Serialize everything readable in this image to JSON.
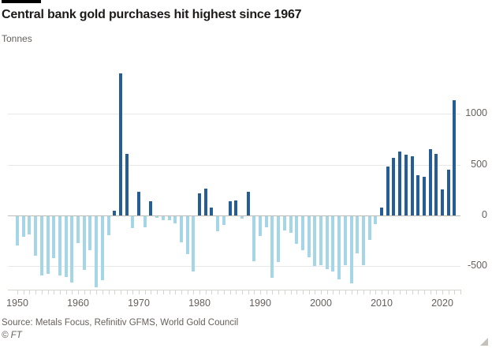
{
  "header": {
    "title": "Central bank gold purchases hit highest since 1967",
    "subtitle": "Tonnes"
  },
  "footer": {
    "source": "Source: Metals Focus, Refinitiv GFMS, World Gold Council",
    "copyright": "© FT"
  },
  "colors": {
    "topbar": "#000000",
    "bar_positive": "#255e96",
    "bar_negative": "#a5d6e8",
    "text": "#1d1b19",
    "muted_text": "#66605c"
  },
  "chart_data": {
    "type": "bar",
    "title": "Central bank gold purchases hit highest since 1967",
    "ylabel": "Tonnes",
    "xlabel": "",
    "grid": true,
    "legend": "none",
    "ylim": [
      -750,
      1450
    ],
    "yticks": [
      1000,
      500,
      0,
      -500
    ],
    "ytick_labels": [
      "1000",
      "500",
      "0",
      "-500"
    ],
    "xticks": [
      1950,
      1960,
      1970,
      1980,
      1990,
      2000,
      2010,
      2020
    ],
    "xtick_labels": [
      "1950",
      "1960",
      "1970",
      "1980",
      "1990",
      "2000",
      "2010",
      "2020"
    ],
    "x": [
      1950,
      1951,
      1952,
      1953,
      1954,
      1955,
      1956,
      1957,
      1958,
      1959,
      1960,
      1961,
      1962,
      1963,
      1964,
      1965,
      1966,
      1967,
      1968,
      1969,
      1970,
      1971,
      1972,
      1973,
      1974,
      1975,
      1976,
      1977,
      1978,
      1979,
      1980,
      1981,
      1982,
      1983,
      1984,
      1985,
      1986,
      1987,
      1988,
      1989,
      1990,
      1991,
      1992,
      1993,
      1994,
      1995,
      1996,
      1997,
      1998,
      1999,
      2000,
      2001,
      2002,
      2003,
      2004,
      2005,
      2006,
      2007,
      2008,
      2009,
      2010,
      2011,
      2012,
      2013,
      2014,
      2015,
      2016,
      2017,
      2018,
      2019,
      2020,
      2021,
      2022
    ],
    "values": [
      -290,
      -205,
      -175,
      -390,
      -580,
      -565,
      -410,
      -580,
      -600,
      -650,
      -265,
      -530,
      -335,
      -700,
      -625,
      -190,
      45,
      1400,
      605,
      -115,
      230,
      -105,
      140,
      -15,
      -40,
      -35,
      -70,
      -260,
      -375,
      -540,
      220,
      265,
      80,
      -145,
      -85,
      140,
      145,
      -20,
      230,
      -440,
      -195,
      -105,
      -605,
      -450,
      -140,
      -165,
      -270,
      -335,
      -400,
      -490,
      -479,
      -520,
      -547,
      -620,
      -479,
      -663,
      -365,
      -484,
      -235,
      -75,
      79,
      481,
      569,
      629,
      601,
      580,
      395,
      379,
      656,
      605,
      255,
      450,
      1136
    ]
  }
}
